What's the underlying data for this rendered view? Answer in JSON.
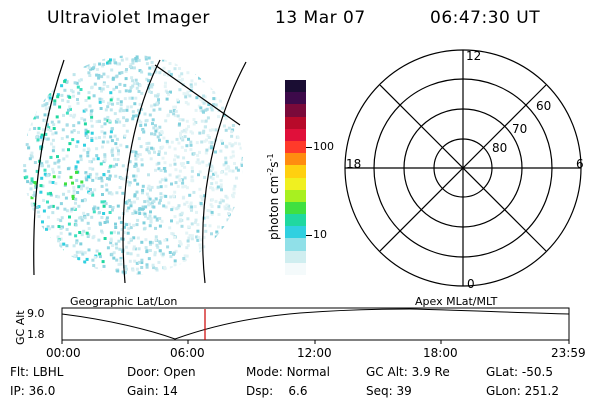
{
  "header": {
    "instrument": "Ultraviolet Imager",
    "date": "13 Mar 07",
    "time": "06:47:30 UT"
  },
  "colorbar": {
    "label_main": "photon cm",
    "label_exp1": "-2",
    "label_mid": "s",
    "label_exp2": "-1",
    "ticks": [
      "100",
      "10"
    ],
    "colors": [
      "#1a0d33",
      "#3d0a4a",
      "#7a0a3a",
      "#b80a2a",
      "#e0103a",
      "#ff3a2a",
      "#ff8c10",
      "#ffd010",
      "#f0f020",
      "#a8f020",
      "#40e040",
      "#20d8a0",
      "#30d0e0",
      "#90e0e8",
      "#d0eef0",
      "#f4fafb"
    ]
  },
  "polar_plot": {
    "mlt_labels": [
      "12",
      "18",
      "6",
      "0"
    ],
    "mlat_labels": [
      "60",
      "70",
      "80"
    ]
  },
  "timeline": {
    "left_caption": "Geographic Lat/Lon",
    "right_caption": "Apex MLat/MLT",
    "axis_title": "GC Alt",
    "y_ticks": [
      "9.0",
      "1.8"
    ],
    "x_ticks": [
      "00:00",
      "06:00",
      "12:00",
      "18:00",
      "23:59"
    ],
    "marker_color": "#cc0000"
  },
  "status": {
    "row1": [
      {
        "label": "Flt:",
        "value": "LBHL"
      },
      {
        "label": "Door:",
        "value": "Open"
      },
      {
        "label": "Mode:",
        "value": "Normal"
      },
      {
        "label": "GC Alt:",
        "value": "3.9 Re"
      },
      {
        "label": "GLat:",
        "value": "-50.5"
      }
    ],
    "row2": [
      {
        "label": "IP:",
        "value": "36.0"
      },
      {
        "label": "Gain:",
        "value": "14"
      },
      {
        "label": "Dsp:",
        "value": "6.6"
      },
      {
        "label": "Seq:",
        "value": "39"
      },
      {
        "label": "GLon:",
        "value": "251.2"
      }
    ]
  }
}
